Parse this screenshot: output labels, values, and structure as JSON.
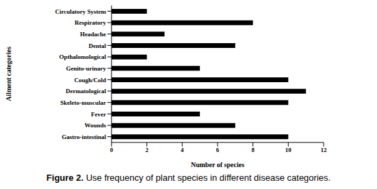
{
  "chart_data": {
    "type": "bar",
    "orientation": "horizontal",
    "title": "Figure 2. Use frequency of plant species in different disease categories.",
    "x_label": "Number of species",
    "y_label": "Ailment categories",
    "categories": [
      "Circulatory System",
      "Respiratory",
      "Headache",
      "Dental",
      "Opthalomological",
      "Genito-urinary",
      "Cough/Cold",
      "Dermatological",
      "Skeleto-muscular",
      "Fever",
      "Wounds",
      "Gastro-intestinal"
    ],
    "values": [
      2,
      8,
      3,
      7,
      2,
      5,
      10,
      11,
      10,
      5,
      7,
      10
    ],
    "color": "#000000",
    "xlim": [
      0,
      12
    ],
    "xticks": [
      0,
      2,
      4,
      6,
      8,
      10,
      12
    ],
    "grid": false
  }
}
